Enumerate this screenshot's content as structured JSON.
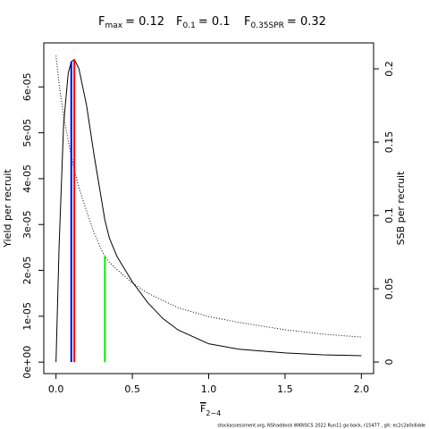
{
  "chart_data": {
    "type": "line",
    "reference_lines": [
      {
        "symbol": "F",
        "subscript": "max",
        "label": "= 0.12",
        "x": 0.12,
        "top": 6.6e-05,
        "color": "#ff0000"
      },
      {
        "symbol": "F",
        "subscript": "0.1",
        "label": "= 0.1",
        "x": 0.1,
        "top": 6.55e-05,
        "color": "#0000ff"
      },
      {
        "symbol": "F",
        "subscript": "0.35SPR",
        "label": "= 0.32",
        "x": 0.32,
        "top": 0.072,
        "axis": "y2",
        "color": "#00ee00"
      }
    ],
    "x_label": {
      "symbol": "F",
      "subscript": "2−4"
    },
    "y_label": "Yield per recruit",
    "y2_label": "SSB per recruit",
    "footer": "stockassessment.org, NShaddock WKNSCS 2022 Run11 go back, r15477 , git: ec2c2a0c6dde",
    "x": [
      0,
      0.02,
      0.05,
      0.08,
      0.1,
      0.12,
      0.15,
      0.2,
      0.25,
      0.3,
      0.32,
      0.35,
      0.4,
      0.5,
      0.6,
      0.7,
      0.8,
      1.0,
      1.2,
      1.5,
      1.75,
      2.0
    ],
    "series": [
      {
        "color": "#000000",
        "dash": "solid",
        "values": [
          0,
          2.5e-05,
          5.2e-05,
          6.3e-05,
          6.55e-05,
          6.6e-05,
          6.4e-05,
          5.6e-05,
          4.5e-05,
          3.5e-05,
          3.1e-05,
          2.7e-05,
          2.3e-05,
          1.75e-05,
          1.3e-05,
          9.5e-06,
          7e-06,
          4e-06,
          2.8e-06,
          2e-06,
          1.6e-06,
          1.4e-06
        ]
      },
      {
        "color": "#000000",
        "dash": "dotted",
        "axis": "y2",
        "values": [
          0.209,
          0.19,
          0.168,
          0.151,
          0.141,
          0.131,
          0.119,
          0.103,
          0.088,
          0.076,
          0.072,
          0.068,
          0.063,
          0.054,
          0.047,
          0.042,
          0.037,
          0.031,
          0.027,
          0.022,
          0.019,
          0.017
        ]
      }
    ],
    "xlim": [
      -0.08,
      2.08
    ],
    "xticks": [
      {
        "value": 0,
        "label": "0.0"
      },
      0.5,
      {
        "value": 1,
        "label": "1.0"
      },
      1.5,
      {
        "value": 2,
        "label": "2.0"
      }
    ],
    "ylim": [
      -2.5e-06,
      6.96e-05
    ],
    "yticks": [
      {
        "value": 0,
        "label": "0e+00"
      },
      {
        "value": 1e-05,
        "label": "1e-05"
      },
      {
        "value": 2e-05,
        "label": "2e-05"
      },
      {
        "value": 3e-05,
        "label": "3e-05"
      },
      {
        "value": 4e-05,
        "label": "4e-05"
      },
      {
        "value": 5e-05,
        "label": "5e-05"
      },
      {
        "value": 6e-05,
        "label": "6e-05"
      }
    ],
    "y2lim": [
      -0.0079,
      0.2177
    ],
    "y2ticks": [
      0,
      0.05,
      0.1,
      0.15,
      0.2
    ]
  }
}
